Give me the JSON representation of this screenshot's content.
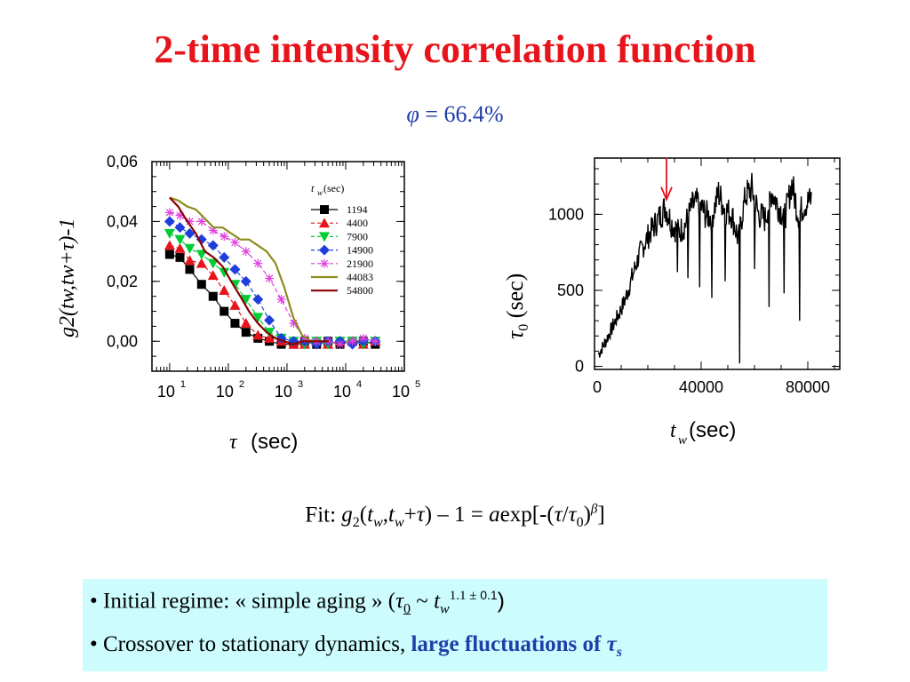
{
  "title": "2-time intensity correlation function",
  "subtitle": {
    "symbol": "φ",
    "rest": " = 66.4%"
  },
  "chart_data": [
    {
      "type": "scatter",
      "xscale": "log",
      "xlabel_symbol": "τ",
      "xlabel_unit": "(sec)",
      "ylabel": "g2(tw,tw+τ)-1",
      "xlim": [
        5,
        100000
      ],
      "ylim": [
        -0.01,
        0.06
      ],
      "yticks": [
        "0,06",
        "0,04",
        "0,02",
        "0,00"
      ],
      "ytick_values": [
        0.06,
        0.04,
        0.02,
        0.0
      ],
      "xticks": [
        {
          "base": "10",
          "exp": "1"
        },
        {
          "base": "10",
          "exp": "2"
        },
        {
          "base": "10",
          "exp": "3"
        },
        {
          "base": "10",
          "exp": "4"
        },
        {
          "base": "10",
          "exp": "5"
        }
      ],
      "legend_header": {
        "symbol": "t",
        "sub": "w",
        "unit": " (sec)"
      },
      "legend_position": "top-right",
      "series": [
        {
          "name": "1194",
          "color": "#000000",
          "marker": "square",
          "line": "solid",
          "x": [
            10,
            15,
            22,
            35,
            55,
            85,
            130,
            200,
            320,
            500,
            800,
            1300,
            2000,
            3200,
            5000,
            8000,
            13000,
            20000,
            32000
          ],
          "y": [
            0.029,
            0.028,
            0.024,
            0.019,
            0.015,
            0.01,
            0.006,
            0.003,
            0.001,
            0.0,
            -0.001,
            -0.001,
            0.0,
            -0.001,
            0.0,
            -0.001,
            0.0,
            0.0,
            -0.001
          ]
        },
        {
          "name": "4400",
          "color": "#e8141b",
          "marker": "triangle",
          "line": "dashed",
          "x": [
            10,
            15,
            22,
            35,
            55,
            85,
            130,
            200,
            320,
            500,
            800,
            1300,
            2000,
            3200,
            5000,
            8000,
            13000,
            20000,
            32000
          ],
          "y": [
            0.032,
            0.031,
            0.027,
            0.026,
            0.022,
            0.017,
            0.012,
            0.006,
            0.002,
            0.001,
            0.0,
            -0.001,
            -0.001,
            0.0,
            -0.001,
            0.0,
            0.0,
            -0.001,
            0.0
          ]
        },
        {
          "name": "7900",
          "color": "#00cc33",
          "marker": "triangle-down",
          "line": "dashed",
          "x": [
            10,
            15,
            22,
            35,
            55,
            85,
            130,
            200,
            320,
            500,
            800,
            1300,
            2000,
            3200,
            5000,
            8000,
            13000,
            20000,
            32000
          ],
          "y": [
            0.036,
            0.034,
            0.031,
            0.029,
            0.026,
            0.023,
            0.019,
            0.014,
            0.008,
            0.003,
            0.001,
            0.0,
            -0.001,
            0.0,
            -0.001,
            0.0,
            0.0,
            -0.001,
            0.0
          ]
        },
        {
          "name": "14900",
          "color": "#1f3fdc",
          "marker": "diamond",
          "line": "dashed",
          "x": [
            10,
            15,
            22,
            35,
            55,
            85,
            130,
            200,
            320,
            500,
            800,
            1300,
            2000,
            3200,
            5000,
            8000,
            13000,
            20000,
            32000
          ],
          "y": [
            0.04,
            0.038,
            0.036,
            0.034,
            0.032,
            0.028,
            0.024,
            0.02,
            0.014,
            0.007,
            0.001,
            0.0,
            0.0,
            -0.001,
            0.0,
            0.0,
            -0.001,
            0.0,
            0.0
          ]
        },
        {
          "name": "21900",
          "color": "#e040e0",
          "marker": "asterisk",
          "line": "dashed",
          "x": [
            10,
            15,
            22,
            35,
            55,
            85,
            130,
            200,
            320,
            500,
            800,
            1300,
            2000,
            3200,
            5000,
            8000,
            13000,
            20000,
            32000
          ],
          "y": [
            0.043,
            0.042,
            0.04,
            0.04,
            0.037,
            0.035,
            0.033,
            0.03,
            0.026,
            0.021,
            0.014,
            0.006,
            0.001,
            0.0,
            0.0,
            -0.001,
            0.0,
            0.001,
            0.0
          ]
        },
        {
          "name": "44083",
          "color": "#8c8c1c",
          "marker": "none",
          "line": "solid",
          "x": [
            10,
            14,
            20,
            28,
            40,
            56,
            80,
            112,
            160,
            225,
            320,
            450,
            640,
            900,
            1280,
            1800,
            2560,
            3600,
            5120
          ],
          "y": [
            0.048,
            0.047,
            0.045,
            0.044,
            0.041,
            0.038,
            0.038,
            0.036,
            0.034,
            0.034,
            0.032,
            0.03,
            0.026,
            0.018,
            0.008,
            0.002,
            0.0,
            0.0,
            0.0
          ]
        },
        {
          "name": "54800",
          "color": "#8b0000",
          "marker": "none",
          "line": "solid",
          "x": [
            10,
            14,
            20,
            28,
            40,
            56,
            80,
            112,
            160,
            225,
            320,
            450,
            640,
            900,
            1280,
            1800,
            2560,
            3600,
            5120
          ],
          "y": [
            0.048,
            0.045,
            0.04,
            0.036,
            0.03,
            0.028,
            0.025,
            0.02,
            0.015,
            0.01,
            0.006,
            0.003,
            0.001,
            0.0,
            -0.001,
            0.0,
            0.0,
            0.0,
            0.0
          ]
        }
      ]
    },
    {
      "type": "line",
      "xlabel_symbol": "t",
      "xlabel_sub": "w",
      "xlabel_unit": " (sec)",
      "ylabel_symbol": "τ",
      "ylabel_sub": "0",
      "ylabel_unit": " (sec)",
      "xlim": [
        0,
        92000
      ],
      "ylim": [
        -20,
        1370
      ],
      "xticks": [
        "0",
        "40000",
        "80000"
      ],
      "xtick_values": [
        0,
        40000,
        80000
      ],
      "yticks": [
        "1000",
        "500",
        "0"
      ],
      "ytick_values": [
        1000,
        500,
        0
      ],
      "arrow_at": {
        "x": 27000,
        "y": 1080,
        "color": "#e8141b"
      },
      "series": [
        {
          "name": "",
          "color": "#000000",
          "x": [
            1500,
            4000,
            6500,
            9000,
            11500,
            14000,
            16500,
            19000,
            21500,
            24000,
            26500,
            29000,
            31500,
            34000,
            36500,
            39000,
            41500,
            44000,
            46500,
            49000,
            51500,
            54000,
            56500,
            59000,
            61500,
            64000,
            66500,
            69000,
            71500,
            74000,
            76500,
            79000,
            81500
          ],
          "y": [
            80,
            160,
            250,
            340,
            440,
            580,
            720,
            820,
            900,
            970,
            1050,
            940,
            880,
            930,
            1050,
            1080,
            1000,
            980,
            1140,
            1030,
            1000,
            830,
            1120,
            1170,
            1000,
            970,
            1150,
            1050,
            990,
            1200,
            1000,
            1070,
            1100
          ]
        },
        {
          "name": "",
          "color": "#000000",
          "dips": true,
          "x": [
            31000,
            35000,
            39500,
            44000,
            49000,
            54500,
            60000,
            65500,
            71000,
            77000
          ],
          "y": [
            620,
            580,
            520,
            450,
            560,
            20,
            640,
            390,
            480,
            300
          ]
        }
      ]
    }
  ],
  "fit": {
    "label": "Fit:",
    "equation": "g2(tw,tw+τ) − 1 = a exp[-(τ/τ0)β]"
  },
  "notes": {
    "line1_prefix": "• Initial regime: « simple aging » (",
    "line1_tau": "τ",
    "line1_sub": "0",
    "line1_tilde": " ~ ",
    "line1_t": "t",
    "line1_w": "w",
    "line1_exp_num": "1.1",
    "line1_pm": " ± ",
    "line1_exp_err": "0.1",
    "line1_close": ")",
    "line2_prefix": "• Crossover to stationary dynamics, ",
    "line2_highlight": "large fluctuations of ",
    "line2_tau": "τ",
    "line2_sub": "s"
  }
}
